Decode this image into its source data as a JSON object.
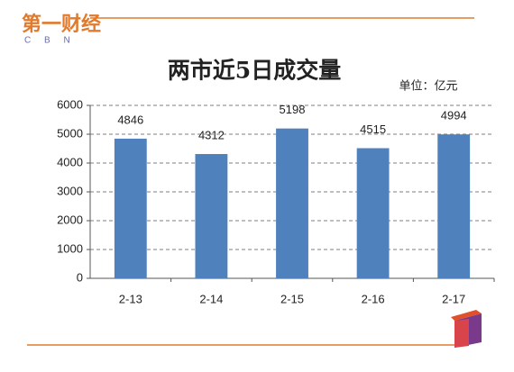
{
  "logo": {
    "text": "第一财经",
    "letters": "C B N"
  },
  "chart_data": {
    "type": "bar",
    "title": "两市近5日成交量",
    "unit": "单位：亿元",
    "categories": [
      "2-13",
      "2-14",
      "2-15",
      "2-16",
      "2-17"
    ],
    "values": [
      4846,
      4312,
      5198,
      4515,
      4994
    ],
    "color": "#4f81bd",
    "ylim": [
      0,
      6000
    ],
    "yticks": [
      0,
      1000,
      2000,
      3000,
      4000,
      5000,
      6000
    ],
    "grid": true
  }
}
